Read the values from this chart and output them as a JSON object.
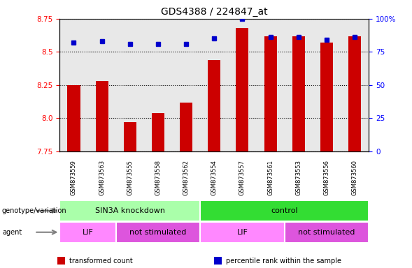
{
  "title": "GDS4388 / 224847_at",
  "samples": [
    "GSM873559",
    "GSM873563",
    "GSM873555",
    "GSM873558",
    "GSM873562",
    "GSM873554",
    "GSM873557",
    "GSM873561",
    "GSM873553",
    "GSM873556",
    "GSM873560"
  ],
  "bar_values": [
    8.25,
    8.28,
    7.97,
    8.04,
    8.12,
    8.44,
    8.68,
    8.62,
    8.62,
    8.57,
    8.62
  ],
  "percentile_values": [
    82,
    83,
    81,
    81,
    81,
    85,
    100,
    86,
    86,
    84,
    86
  ],
  "y_min": 7.75,
  "y_max": 8.75,
  "bar_color": "#cc0000",
  "dot_color": "#0000cc",
  "groups": [
    {
      "label": "SIN3A knockdown",
      "start": 0,
      "end": 5,
      "color": "#aaffaa"
    },
    {
      "label": "control",
      "start": 5,
      "end": 11,
      "color": "#33dd33"
    }
  ],
  "agents": [
    {
      "label": "LIF",
      "start": 0,
      "end": 2,
      "color": "#ff88ff"
    },
    {
      "label": "not stimulated",
      "start": 2,
      "end": 5,
      "color": "#dd55dd"
    },
    {
      "label": "LIF",
      "start": 5,
      "end": 8,
      "color": "#ff88ff"
    },
    {
      "label": "not stimulated",
      "start": 8,
      "end": 11,
      "color": "#dd55dd"
    }
  ],
  "yticks_left": [
    7.75,
    8.0,
    8.25,
    8.5,
    8.75
  ],
  "yticks_right_vals": [
    0,
    25,
    50,
    75,
    100
  ],
  "yticks_right_labels": [
    "0",
    "25",
    "50",
    "75",
    "100%"
  ],
  "legend_items": [
    {
      "label": "transformed count",
      "color": "#cc0000"
    },
    {
      "label": "percentile rank within the sample",
      "color": "#0000cc"
    }
  ],
  "bg_color": "#ffffff",
  "plot_bg": "#e8e8e8",
  "xticklabel_bg": "#cccccc"
}
